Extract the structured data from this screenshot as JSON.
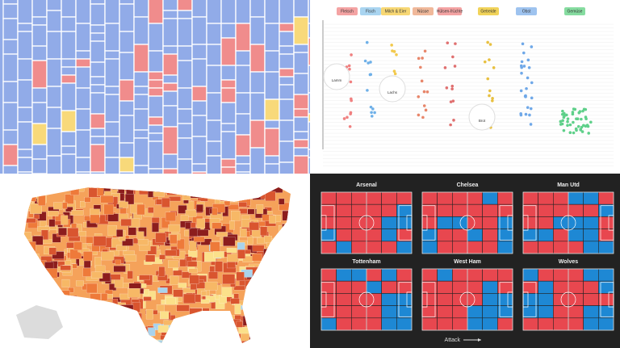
{
  "food_panel": {
    "categories": [
      "Fleisch",
      "Fisch",
      "Milch & Eier",
      "Nüsse",
      "Hülsen-früchte",
      "Getreide",
      "Obst",
      "Gemüse"
    ],
    "callouts": [
      "Lamm",
      "Lachs",
      "Brot"
    ]
  },
  "football_panel": {
    "teams": [
      "Arsenal",
      "Chelsea",
      "Man Utd",
      "Tottenham",
      "West Ham",
      "Wolves"
    ],
    "axis_label": "Attack"
  }
}
